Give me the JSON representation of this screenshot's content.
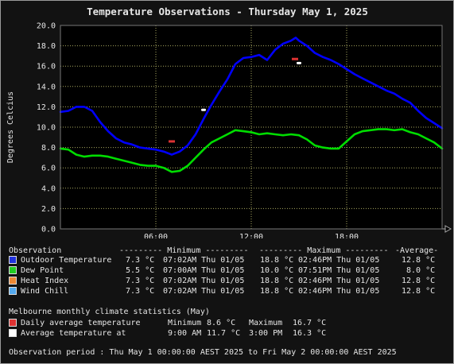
{
  "chart_data": {
    "type": "line",
    "title": "Temperature Observations - Thursday May 1, 2025",
    "ylabel": "Degrees Celcius",
    "xlabel": "",
    "ylim": [
      0,
      20
    ],
    "yticks": [
      "0.0",
      "2.0",
      "4.0",
      "6.0",
      "8.0",
      "10.0",
      "12.0",
      "14.0",
      "16.0",
      "18.0",
      "20.0"
    ],
    "xlim": [
      0,
      24
    ],
    "xticks": [
      {
        "value": 6,
        "label": "06:00"
      },
      {
        "value": 12,
        "label": "12:00"
      },
      {
        "value": 18,
        "label": "18:00"
      }
    ],
    "grid": true,
    "series": [
      {
        "name": "Outdoor Temperature",
        "color": "#0000ff",
        "x": [
          0,
          0.5,
          1,
          1.5,
          2,
          2.5,
          3,
          3.5,
          4,
          4.5,
          5,
          5.5,
          6,
          6.5,
          7,
          7.5,
          8,
          8.5,
          9,
          9.5,
          10,
          10.5,
          11,
          11.5,
          12,
          12.5,
          13,
          13.5,
          14,
          14.5,
          14.8,
          15,
          15.5,
          16,
          16.5,
          17,
          17.5,
          18,
          18.5,
          19,
          19.5,
          20,
          20.5,
          21,
          21.5,
          22,
          22.5,
          23,
          23.5,
          24
        ],
        "y": [
          11.5,
          11.6,
          12.0,
          12.0,
          11.6,
          10.5,
          9.6,
          8.9,
          8.5,
          8.3,
          8.0,
          7.9,
          7.8,
          7.6,
          7.3,
          7.6,
          8.2,
          9.3,
          10.8,
          12.2,
          13.5,
          14.7,
          16.2,
          16.8,
          16.9,
          17.1,
          16.6,
          17.6,
          18.2,
          18.5,
          18.8,
          18.5,
          18.0,
          17.3,
          16.9,
          16.6,
          16.2,
          15.7,
          15.2,
          14.8,
          14.4,
          14.0,
          13.6,
          13.3,
          12.8,
          12.4,
          11.6,
          10.9,
          10.4,
          9.9
        ]
      },
      {
        "name": "Dew Point",
        "color": "#00dd00",
        "x": [
          0,
          0.5,
          1,
          1.5,
          2,
          2.5,
          3,
          3.5,
          4,
          4.5,
          5,
          5.5,
          6,
          6.5,
          7,
          7.5,
          8,
          8.5,
          9,
          9.5,
          10,
          10.5,
          11,
          11.5,
          12,
          12.5,
          13,
          13.5,
          14,
          14.5,
          15,
          15.5,
          16,
          16.5,
          17,
          17.5,
          18,
          18.5,
          19,
          19.5,
          20,
          20.5,
          21,
          21.5,
          22,
          22.5,
          23,
          23.5,
          24
        ],
        "y": [
          7.9,
          7.8,
          7.3,
          7.1,
          7.2,
          7.2,
          7.1,
          6.9,
          6.7,
          6.5,
          6.3,
          6.2,
          6.2,
          6.0,
          5.6,
          5.7,
          6.2,
          7.0,
          7.8,
          8.5,
          8.9,
          9.3,
          9.7,
          9.6,
          9.5,
          9.3,
          9.4,
          9.3,
          9.2,
          9.3,
          9.2,
          8.8,
          8.2,
          8.0,
          7.9,
          7.9,
          8.6,
          9.3,
          9.6,
          9.7,
          9.8,
          9.8,
          9.7,
          9.8,
          9.5,
          9.3,
          8.9,
          8.5,
          7.9
        ]
      }
    ],
    "climate_markers": {
      "daily_average_temperature": {
        "color": "#dd3333",
        "points": [
          {
            "x": 7.0,
            "y": 8.6
          },
          {
            "x": 14.75,
            "y": 16.7
          }
        ]
      },
      "average_temperature_at": {
        "color": "#ffffff",
        "points": [
          {
            "x": 9.0,
            "y": 11.7
          },
          {
            "x": 15.0,
            "y": 16.3
          }
        ]
      }
    }
  },
  "legend": {
    "header": {
      "observation": "Observation",
      "minimum": "--------- Minimum ---------",
      "maximum": "--------- Maximum ---------",
      "average": "-Average-"
    },
    "rows": [
      {
        "label": "Outdoor Temperature",
        "color": "#2233dd",
        "min_val": "7.3 °C",
        "min_time": "07:02AM Thu 01/05",
        "max_val": "18.8 °C",
        "max_time": "02:46PM Thu 01/05",
        "avg": "12.8 °C"
      },
      {
        "label": "Dew Point",
        "color": "#22cc22",
        "min_val": "5.5 °C",
        "min_time": "07:00AM Thu 01/05",
        "max_val": "10.0 °C",
        "max_time": "07:51PM Thu 01/05",
        "avg": "8.0 °C"
      },
      {
        "label": "Heat Index",
        "color": "#ee8833",
        "min_val": "7.3 °C",
        "min_time": "07:02AM Thu 01/05",
        "max_val": "18.8 °C",
        "max_time": "02:46PM Thu 01/05",
        "avg": "12.8 °C"
      },
      {
        "label": "Wind Chill",
        "color": "#55aaee",
        "min_val": "7.3 °C",
        "min_time": "07:02AM Thu 01/05",
        "max_val": "18.8 °C",
        "max_time": "02:46PM Thu 01/05",
        "avg": "12.8 °C"
      }
    ]
  },
  "climate": {
    "title": "Melbourne monthly climate statistics (May)",
    "row1": {
      "label": "Daily average temperature",
      "color": "#dd3333",
      "min_label": "Minimum",
      "min_val": "8.6 °C",
      "max_label": "Maximum",
      "max_val": "16.7 °C"
    },
    "row2": {
      "label": "Average temperature at",
      "color": "#ffffff",
      "t1": "9:00 AM",
      "v1": "11.7 °C",
      "t2": "3:00 PM",
      "v2": "16.3 °C"
    }
  },
  "period": "Observation period : Thu May 1 00:00:00 AEST 2025 to Fri May 2 00:00:00 AEST 2025"
}
